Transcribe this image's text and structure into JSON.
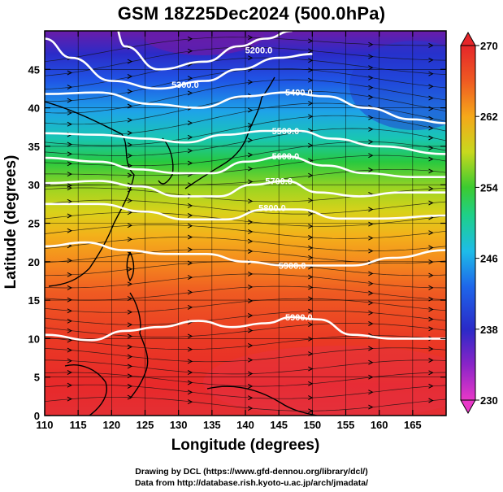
{
  "title": "GSM 18Z25Dec2024 (500.0hPa)",
  "xlabel": "Longitude (degrees)",
  "ylabel": "Latitude  (degrees)",
  "credit_line1": "Drawing by DCL (https://www.gfd-dennou.org/library/dcl/)",
  "credit_line2": "Data from http://database.rish.kyoto-u.ac.jp/arch/jmadata/",
  "chart_data": {
    "type": "heatmap",
    "x_ticks": [
      110,
      115,
      120,
      125,
      130,
      135,
      140,
      145,
      150,
      155,
      160,
      165
    ],
    "y_ticks": [
      0,
      5,
      10,
      15,
      20,
      25,
      30,
      35,
      40,
      45
    ],
    "x_tick_labels": [
      "110",
      "115",
      "120",
      "125",
      "130",
      "135",
      "140",
      "145",
      "150",
      "155",
      "160",
      "165"
    ],
    "y_tick_labels": [
      "0",
      "5",
      "10",
      "15",
      "20",
      "25",
      "30",
      "35",
      "40",
      "45"
    ],
    "xlim": [
      110,
      170
    ],
    "ylim": [
      0,
      50
    ],
    "colorbar": {
      "min": 230,
      "max": 270,
      "tick_values": [
        230,
        238,
        246,
        254,
        262,
        270
      ],
      "tick_labels": [
        "230",
        "238",
        "246",
        "254",
        "262",
        "270"
      ]
    },
    "height_contours": [
      {
        "label": "5200.0",
        "label_at": [
          142,
          47.5
        ],
        "points": [
          [
            120,
            52
          ],
          [
            122,
            48
          ],
          [
            127,
            45
          ],
          [
            134,
            46
          ],
          [
            139,
            48
          ],
          [
            143,
            49
          ],
          [
            147,
            50
          ]
        ]
      },
      {
        "label": "5300.0",
        "label_at": [
          131,
          43
        ],
        "points": [
          [
            110,
            49
          ],
          [
            114,
            46.5
          ],
          [
            120,
            43.5
          ],
          [
            127,
            42.5
          ],
          [
            134,
            43.5
          ],
          [
            139,
            45
          ],
          [
            145,
            46.5
          ],
          [
            150,
            47
          ]
        ]
      },
      {
        "label": "5400.0",
        "label_at": [
          148,
          42
        ],
        "points": [
          [
            110,
            41.8
          ],
          [
            118,
            42
          ],
          [
            126,
            40.5
          ],
          [
            133,
            40
          ],
          [
            140,
            41.5
          ],
          [
            146,
            42
          ],
          [
            152,
            41.5
          ],
          [
            158,
            40
          ],
          [
            165,
            38.5
          ],
          [
            170,
            38
          ]
        ]
      },
      {
        "label": "5500.0",
        "label_at": [
          146,
          37
        ],
        "points": [
          [
            110,
            36.7
          ],
          [
            118,
            36.5
          ],
          [
            125,
            36
          ],
          [
            131,
            35.5
          ],
          [
            137,
            36.5
          ],
          [
            143,
            37
          ],
          [
            148,
            37
          ],
          [
            153,
            36
          ],
          [
            160,
            35
          ],
          [
            170,
            34
          ]
        ]
      },
      {
        "label": "5600.0",
        "label_at": [
          146,
          33.7
        ],
        "points": [
          [
            110,
            33.5
          ],
          [
            118,
            33
          ],
          [
            124,
            32
          ],
          [
            130,
            31.5
          ],
          [
            135,
            31.5
          ],
          [
            140,
            33
          ],
          [
            146,
            33.7
          ],
          [
            152,
            32.5
          ],
          [
            158,
            31.5
          ],
          [
            165,
            31
          ],
          [
            170,
            31
          ]
        ]
      },
      {
        "label": "5700.0",
        "label_at": [
          145,
          30.5
        ],
        "points": [
          [
            110,
            30.2
          ],
          [
            118,
            30.5
          ],
          [
            124,
            29.8
          ],
          [
            130,
            28.5
          ],
          [
            136,
            28.5
          ],
          [
            141,
            30
          ],
          [
            146,
            30.5
          ],
          [
            151,
            29
          ],
          [
            157,
            28.5
          ],
          [
            163,
            29
          ],
          [
            170,
            29
          ]
        ]
      },
      {
        "label": "5800.0",
        "label_at": [
          144,
          27
        ],
        "points": [
          [
            110,
            27.5
          ],
          [
            118,
            27.5
          ],
          [
            125,
            26.5
          ],
          [
            131,
            25.5
          ],
          [
            137,
            25.5
          ],
          [
            143,
            26.8
          ],
          [
            148,
            26.8
          ],
          [
            154,
            25.6
          ],
          [
            160,
            25.6
          ],
          [
            170,
            26
          ]
        ]
      },
      {
        "label": "5900.0",
        "label_at": [
          147,
          19.5
        ],
        "points": [
          [
            110,
            22
          ],
          [
            116,
            22.5
          ],
          [
            122,
            21.5
          ],
          [
            128,
            21
          ],
          [
            134,
            21
          ],
          [
            140,
            20
          ],
          [
            146,
            19.5
          ],
          [
            151,
            19.5
          ],
          [
            156,
            19.5
          ],
          [
            162,
            20.5
          ],
          [
            170,
            21.5
          ]
        ]
      },
      {
        "label": "5900.0",
        "label_at": [
          148,
          12.8
        ],
        "points": [
          [
            110,
            10.5
          ],
          [
            117,
            9.8
          ],
          [
            122,
            11
          ],
          [
            127,
            11.5
          ],
          [
            133,
            12.3
          ],
          [
            138,
            11.5
          ],
          [
            143,
            12
          ],
          [
            147,
            12.8
          ],
          [
            151,
            12.5
          ],
          [
            156,
            10.5
          ],
          [
            162,
            10
          ],
          [
            170,
            10
          ]
        ]
      }
    ]
  }
}
